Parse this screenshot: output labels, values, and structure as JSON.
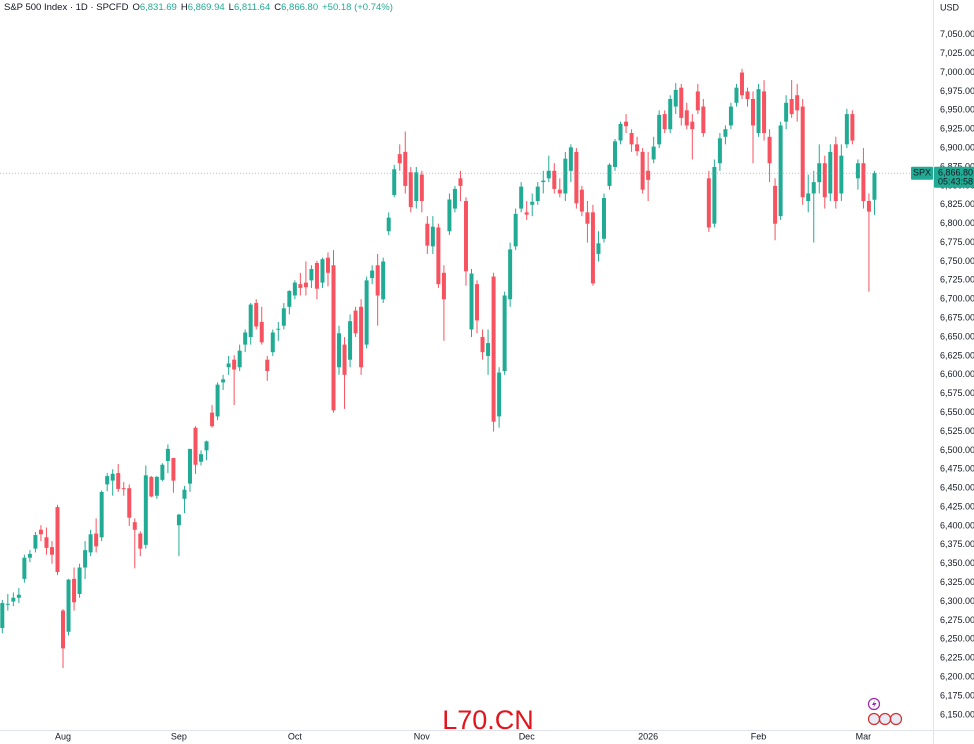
{
  "chart_data": {
    "type": "candlestick",
    "title": "S&P 500 Index · 1D · SPCFD",
    "ohlc": [
      {
        "key": "O",
        "value": "6,831.69"
      },
      {
        "key": "H",
        "value": "6,869.94"
      },
      {
        "key": "L",
        "value": "6,811.64"
      },
      {
        "key": "C",
        "value": "6,866.80"
      }
    ],
    "change": "+50.18 (+0.74%)",
    "currency": "USD",
    "symbol": "SPX",
    "last_price": {
      "value": 6866.8,
      "label": "6,866.80"
    },
    "countdown": "05:43:58",
    "watermark": "L70.CN",
    "up_color": "#22ab94",
    "down_color": "#f7525f",
    "grid": false,
    "ylim": [
      6130,
      7096
    ],
    "yticks": [
      {
        "value": 7050,
        "label": "7,050.00"
      },
      {
        "value": 7025,
        "label": "7,025.00"
      },
      {
        "value": 7000,
        "label": "7,000.00"
      },
      {
        "value": 6975,
        "label": "6,975.00"
      },
      {
        "value": 6950,
        "label": "6,950.00"
      },
      {
        "value": 6925,
        "label": "6,925.00"
      },
      {
        "value": 6900,
        "label": "6,900.00"
      },
      {
        "value": 6875,
        "label": "6,875.00"
      },
      {
        "value": 6850,
        "label": "6,850.00"
      },
      {
        "value": 6825,
        "label": "6,825.00"
      },
      {
        "value": 6800,
        "label": "6,800.00"
      },
      {
        "value": 6775,
        "label": "6,775.00"
      },
      {
        "value": 6750,
        "label": "6,750.00"
      },
      {
        "value": 6725,
        "label": "6,725.00"
      },
      {
        "value": 6700,
        "label": "6,700.00"
      },
      {
        "value": 6675,
        "label": "6,675.00"
      },
      {
        "value": 6650,
        "label": "6,650.00"
      },
      {
        "value": 6625,
        "label": "6,625.00"
      },
      {
        "value": 6600,
        "label": "6,600.00"
      },
      {
        "value": 6575,
        "label": "6,575.00"
      },
      {
        "value": 6550,
        "label": "6,550.00"
      },
      {
        "value": 6525,
        "label": "6,525.00"
      },
      {
        "value": 6500,
        "label": "6,500.00"
      },
      {
        "value": 6475,
        "label": "6,475.00"
      },
      {
        "value": 6450,
        "label": "6,450.00"
      },
      {
        "value": 6425,
        "label": "6,425.00"
      },
      {
        "value": 6400,
        "label": "6,400.00"
      },
      {
        "value": 6375,
        "label": "6,375.00"
      },
      {
        "value": 6350,
        "label": "6,350.00"
      },
      {
        "value": 6325,
        "label": "6,325.00"
      },
      {
        "value": 6300,
        "label": "6,300.00"
      },
      {
        "value": 6275,
        "label": "6,275.00"
      },
      {
        "value": 6250,
        "label": "6,250.00"
      },
      {
        "value": 6225,
        "label": "6,225.00"
      },
      {
        "value": 6200,
        "label": "6,200.00"
      },
      {
        "value": 6175,
        "label": "6,175.00"
      },
      {
        "value": 6150,
        "label": "6,150.00"
      }
    ],
    "categories": [
      null,
      null,
      null,
      null,
      null,
      null,
      null,
      null,
      null,
      null,
      null,
      "Aug",
      null,
      null,
      null,
      null,
      null,
      null,
      null,
      null,
      null,
      null,
      null,
      null,
      null,
      null,
      null,
      null,
      null,
      null,
      null,
      null,
      "Sep",
      null,
      null,
      null,
      null,
      null,
      null,
      null,
      null,
      null,
      null,
      null,
      null,
      null,
      null,
      null,
      null,
      null,
      null,
      null,
      null,
      "Oct",
      null,
      null,
      null,
      null,
      null,
      null,
      null,
      null,
      null,
      null,
      null,
      null,
      null,
      null,
      null,
      null,
      null,
      null,
      null,
      null,
      null,
      null,
      "Nov",
      null,
      null,
      null,
      null,
      null,
      null,
      null,
      null,
      null,
      null,
      null,
      null,
      null,
      null,
      null,
      null,
      null,
      null,
      "Dec",
      null,
      null,
      null,
      null,
      null,
      null,
      null,
      null,
      null,
      null,
      null,
      null,
      null,
      null,
      null,
      null,
      null,
      null,
      null,
      null,
      null,
      "2026",
      null,
      null,
      null,
      null,
      null,
      null,
      null,
      null,
      null,
      null,
      null,
      null,
      null,
      null,
      null,
      null,
      null,
      null,
      null,
      "Feb",
      null,
      null,
      null,
      null,
      null,
      null,
      null,
      null,
      null,
      null,
      null,
      null,
      null,
      null,
      null,
      null,
      null,
      null,
      "Mar",
      null,
      null
    ],
    "open": [
      6265,
      6296,
      6300,
      6305,
      6330,
      6358,
      6370,
      6395,
      6385,
      6372,
      6425,
      6288,
      6260,
      6330,
      6310,
      6345,
      6365,
      6390,
      6385,
      6455,
      6460,
      6470,
      6450,
      6450,
      6405,
      6390,
      6375,
      6465,
      6440,
      6461,
      6486,
      6490,
      6401,
      6436,
      6456,
      6530,
      6485,
      6500,
      6550,
      6545,
      6590,
      6610,
      6620,
      6610,
      6640,
      6650,
      6695,
      6670,
      6620,
      6630,
      6660,
      6665,
      6690,
      6705,
      6720,
      6722,
      6725,
      6748,
      6722,
      6755,
      6745,
      6610,
      6640,
      6620,
      6685,
      6690,
      6640,
      6728,
      6745,
      6700,
      6790,
      6838,
      6892,
      6895,
      6868,
      6830,
      6865,
      6800,
      6770,
      6795,
      6735,
      6790,
      6820,
      6860,
      6830,
      6660,
      6720,
      6650,
      6625,
      6730,
      6545,
      6605,
      6700,
      6770,
      6820,
      6815,
      6825,
      6830,
      6855,
      6860,
      6870,
      6845,
      6840,
      6870,
      6895,
      6845,
      6815,
      6815,
      6760,
      6780,
      6850,
      6875,
      6910,
      6935,
      6920,
      6905,
      6895,
      6870,
      6885,
      6905,
      6945,
      6925,
      6955,
      6980,
      6950,
      6935,
      6975,
      6955,
      6860,
      6800,
      6880,
      6915,
      6930,
      6960,
      7000,
      6975,
      6965,
      6920,
      6975,
      6915,
      6850,
      6810,
      6935,
      6965,
      6970,
      6955,
      6830,
      6840,
      6855,
      6880,
      6840,
      6905,
      6840,
      6905,
      6945,
      6860,
      6880,
      6830,
      6831.69
    ],
    "high": [
      6302,
      6310,
      6312,
      6318,
      6362,
      6368,
      6392,
      6401,
      6398,
      6380,
      6428,
      6290,
      6330,
      6345,
      6350,
      6380,
      6395,
      6410,
      6447,
      6470,
      6475,
      6482,
      6458,
      6455,
      6410,
      6393,
      6480,
      6466,
      6466,
      6483,
      6508,
      6490,
      6416,
      6453,
      6502,
      6532,
      6500,
      6513,
      6560,
      6590,
      6600,
      6625,
      6626,
      6640,
      6660,
      6695,
      6700,
      6690,
      6625,
      6660,
      6670,
      6695,
      6712,
      6725,
      6735,
      6750,
      6745,
      6751,
      6755,
      6762,
      6765,
      6665,
      6650,
      6680,
      6690,
      6700,
      6730,
      6745,
      6760,
      6755,
      6815,
      6878,
      6905,
      6922,
      6875,
      6875,
      6870,
      6810,
      6810,
      6800,
      6745,
      6840,
      6850,
      6870,
      6835,
      6740,
      6725,
      6660,
      6660,
      6735,
      6610,
      6710,
      6775,
      6820,
      6855,
      6830,
      6840,
      6855,
      6870,
      6890,
      6880,
      6860,
      6895,
      6905,
      6900,
      6850,
      6830,
      6825,
      6790,
      6840,
      6880,
      6912,
      6935,
      6945,
      6925,
      6915,
      6900,
      6895,
      6915,
      6950,
      6950,
      6970,
      6986,
      6985,
      6960,
      6945,
      6985,
      6965,
      6870,
      6885,
      6920,
      6930,
      6960,
      6985,
      7005,
      6980,
      6975,
      6985,
      6990,
      6925,
      6860,
      6935,
      6970,
      6990,
      6985,
      6965,
      6865,
      6870,
      6905,
      6890,
      6905,
      6915,
      6905,
      6952,
      6950,
      6885,
      6900,
      6840,
      6869.94
    ],
    "low": [
      6258,
      6288,
      6294,
      6298,
      6325,
      6352,
      6365,
      6380,
      6362,
      6350,
      6335,
      6212,
      6255,
      6288,
      6305,
      6330,
      6360,
      6365,
      6380,
      6446,
      6440,
      6445,
      6440,
      6400,
      6344,
      6360,
      6370,
      6438,
      6436,
      6459,
      6470,
      6444,
      6360,
      6417,
      6445,
      6469,
      6480,
      6487,
      6530,
      6540,
      6580,
      6600,
      6560,
      6605,
      6630,
      6640,
      6660,
      6640,
      6592,
      6625,
      6645,
      6660,
      6680,
      6700,
      6705,
      6705,
      6715,
      6700,
      6715,
      6717,
      6550,
      6600,
      6555,
      6610,
      6650,
      6600,
      6635,
      6720,
      6665,
      6695,
      6785,
      6835,
      6870,
      6840,
      6815,
      6820,
      6815,
      6760,
      6760,
      6715,
      6645,
      6785,
      6815,
      6830,
      6718,
      6650,
      6655,
      6620,
      6600,
      6525,
      6530,
      6600,
      6690,
      6765,
      6815,
      6805,
      6810,
      6825,
      6840,
      6855,
      6840,
      6835,
      6830,
      6855,
      6820,
      6810,
      6775,
      6718,
      6750,
      6775,
      6845,
      6870,
      6905,
      6920,
      6895,
      6890,
      6840,
      6830,
      6880,
      6900,
      6920,
      6920,
      6945,
      6930,
      6925,
      6885,
      6945,
      6915,
      6789,
      6795,
      6870,
      6905,
      6925,
      6955,
      6965,
      6955,
      6880,
      6915,
      6910,
      6855,
      6778,
      6805,
      6925,
      6940,
      6935,
      6825,
      6815,
      6775,
      6840,
      6820,
      6830,
      6820,
      6830,
      6900,
      6905,
      6845,
      6820,
      6710,
      6811.64
    ],
    "close": [
      6298,
      6297,
      6305,
      6309,
      6358,
      6363,
      6388,
      6389,
      6371,
      6362,
      6339,
      6238,
      6329,
      6299,
      6345,
      6368,
      6389,
      6373,
      6445,
      6466,
      6469,
      6449,
      6449,
      6411,
      6395,
      6370,
      6467,
      6439,
      6465,
      6481,
      6502,
      6460,
      6415,
      6448,
      6502,
      6481,
      6495,
      6512,
      6532,
      6587,
      6594,
      6615,
      6607,
      6632,
      6656,
      6693,
      6664,
      6643,
      6605,
      6656,
      6661,
      6688,
      6711,
      6722,
      6715,
      6716,
      6740,
      6714,
      6753,
      6735,
      6553,
      6655,
      6600,
      6671,
      6655,
      6610,
      6725,
      6738,
      6705,
      6750,
      6808,
      6872,
      6880,
      6850,
      6822,
      6868,
      6830,
      6771,
      6796,
      6720,
      6700,
      6832,
      6846,
      6850,
      6737,
      6734,
      6672,
      6630,
      6642,
      6538,
      6603,
      6705,
      6766,
      6813,
      6849,
      6812,
      6829,
      6849,
      6857,
      6870,
      6846,
      6840,
      6886,
      6901,
      6827,
      6816,
      6800,
      6721,
      6774,
      6834,
      6878,
      6909,
      6932,
      6929,
      6905,
      6896,
      6845,
      6858,
      6902,
      6944,
      6925,
      6965,
      6977,
      6940,
      6930,
      6925,
      6950,
      6920,
      6795,
      6875,
      6913,
      6925,
      6955,
      6980,
      6970,
      6965,
      6930,
      6978,
      6920,
      6880,
      6800,
      6930,
      6960,
      6945,
      6950,
      6835,
      6840,
      6855,
      6880,
      6835,
      6895,
      6830,
      6890,
      6945,
      6910,
      6880,
      6830,
      6816,
      6866.8
    ]
  }
}
